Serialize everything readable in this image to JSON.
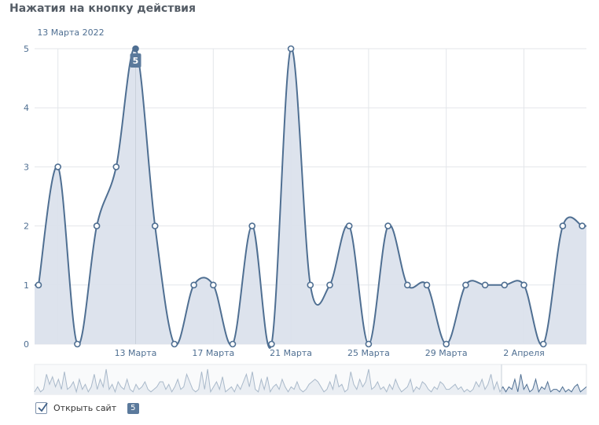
{
  "title": "Нажатия на кнопку действия",
  "tooltip": {
    "date": "13 Марта 2022",
    "value": "5"
  },
  "legend": {
    "label": "Открыть сайт",
    "value": "5",
    "checked": true
  },
  "colors": {
    "line": "#4f6f92",
    "area": "#dbe2ec",
    "grid": "#e3e6ea",
    "axis_text": "#4f6f92",
    "navigator_mask": "#f4f6f8"
  },
  "chart_data": {
    "type": "area",
    "ylim": [
      0,
      5
    ],
    "yticks": [
      0,
      1,
      2,
      3,
      4,
      5
    ],
    "xtick_labels": [
      "13 Марта",
      "17 Марта",
      "21 Марта",
      "25 Марта",
      "29 Марта",
      "2 Апреля"
    ],
    "series": [
      {
        "values": [
          1,
          3,
          0,
          2,
          3,
          5,
          2,
          0,
          1,
          1,
          0,
          2,
          0,
          5,
          1,
          1,
          2,
          0,
          2,
          1,
          1,
          0,
          1,
          1,
          1,
          1,
          0,
          2,
          2
        ],
        "highlighted_value": 5
      }
    ],
    "navigator": {
      "values": [
        0.1,
        0.3,
        0.1,
        0.2,
        0.8,
        0.4,
        0.7,
        0.3,
        0.6,
        0.2,
        0.9,
        0.2,
        0.3,
        0.5,
        0.1,
        0.6,
        0.2,
        0.4,
        0.1,
        0.3,
        0.8,
        0.2,
        0.6,
        0.3,
        1.0,
        0.2,
        0.4,
        0.1,
        0.5,
        0.3,
        0.2,
        0.6,
        0.2,
        0.1,
        0.4,
        0.2,
        0.3,
        0.5,
        0.2,
        0.1,
        0.2,
        0.3,
        0.5,
        0.5,
        0.2,
        0.4,
        0.1,
        0.3,
        0.6,
        0.2,
        0.3,
        0.8,
        0.5,
        0.2,
        0.1,
        0.2,
        0.9,
        0.2,
        1.0,
        0.1,
        0.3,
        0.5,
        0.2,
        0.7,
        0.1,
        0.2,
        0.3,
        0.1,
        0.4,
        0.2,
        0.5,
        0.8,
        0.3,
        0.9,
        0.2,
        0.1,
        0.6,
        0.2,
        0.7,
        0.1,
        0.3,
        0.4,
        0.2,
        0.6,
        0.3,
        0.1,
        0.3,
        0.2,
        0.5,
        0.2,
        0.1,
        0.2,
        0.4,
        0.5,
        0.6,
        0.5,
        0.3,
        0.1,
        0.2,
        0.5,
        0.2,
        0.8,
        0.3,
        0.4,
        0.1,
        0.2,
        0.9,
        0.4,
        0.2,
        0.6,
        0.3,
        0.5,
        1.0,
        0.2,
        0.3,
        0.5,
        0.2,
        0.3,
        0.1,
        0.4,
        0.2,
        0.6,
        0.3,
        0.1,
        0.2,
        0.3,
        0.6,
        0.1,
        0.3,
        0.2,
        0.5,
        0.4,
        0.2,
        0.1,
        0.3,
        0.2,
        0.5,
        0.4,
        0.2,
        0.2,
        0.3,
        0.4,
        0.2,
        0.3,
        0.1,
        0.2,
        0.1,
        0.2,
        0.5,
        0.3,
        0.6,
        0.2,
        0.4,
        0.8,
        0.2,
        0.5,
        0.1,
        0.3,
        0.1,
        0.3,
        0.2,
        0.6,
        0.1,
        0.8,
        0.2,
        0.4,
        0.1,
        0.2,
        0.6,
        0.1,
        0.3,
        0.2,
        0.5,
        0.1,
        0.2,
        0.2,
        0.1,
        0.3,
        0.1,
        0.2,
        0.1,
        0.3,
        0.4,
        0.1,
        0.2,
        0.3
      ]
    }
  }
}
